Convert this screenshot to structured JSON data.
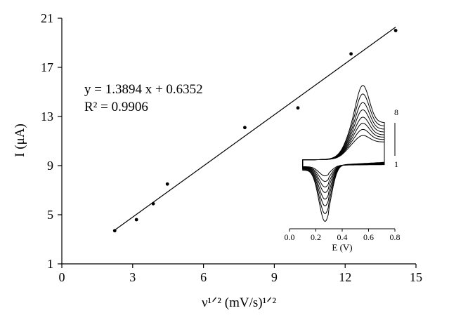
{
  "chart_data": {
    "type": "scatter",
    "title": "",
    "xlabel": "ν¹ᐟ² (mV/s)¹ᐟ²",
    "ylabel": "I (μA)",
    "xlim": [
      0,
      15
    ],
    "ylim": [
      1,
      21
    ],
    "xticks": [
      "0",
      "3",
      "6",
      "9",
      "12",
      "15"
    ],
    "yticks": [
      "1",
      "5",
      "9",
      "13",
      "17",
      "21"
    ],
    "grid": false,
    "points": [
      {
        "x": 2.24,
        "y": 3.7
      },
      {
        "x": 3.16,
        "y": 4.6
      },
      {
        "x": 3.87,
        "y": 5.9
      },
      {
        "x": 4.47,
        "y": 7.5
      },
      {
        "x": 7.75,
        "y": 12.1
      },
      {
        "x": 10.0,
        "y": 13.7
      },
      {
        "x": 12.25,
        "y": 18.1
      },
      {
        "x": 14.14,
        "y": 20.0
      }
    ],
    "fit": {
      "slope": 1.3894,
      "intercept": 0.6352,
      "x_range": [
        2.24,
        14.14
      ],
      "equation_label": "y = 1.3894 x + 0.6352",
      "r2_label": "R² = 0.9906"
    },
    "inset": {
      "type": "line",
      "xlabel": "E (V)",
      "xlim": [
        0.0,
        0.8
      ],
      "xticks": [
        "0.0",
        "0.2",
        "0.4",
        "0.6",
        "0.8"
      ],
      "curve_labels": {
        "top": "8",
        "bottom": "1"
      },
      "curve_count": 8,
      "ylim": [
        -1,
        1
      ],
      "curves": [
        {
          "scale": 0.18
        },
        {
          "scale": 0.28
        },
        {
          "scale": 0.38
        },
        {
          "scale": 0.48
        },
        {
          "scale": 0.6
        },
        {
          "scale": 0.72
        },
        {
          "scale": 0.86
        },
        {
          "scale": 1.0
        }
      ]
    }
  }
}
